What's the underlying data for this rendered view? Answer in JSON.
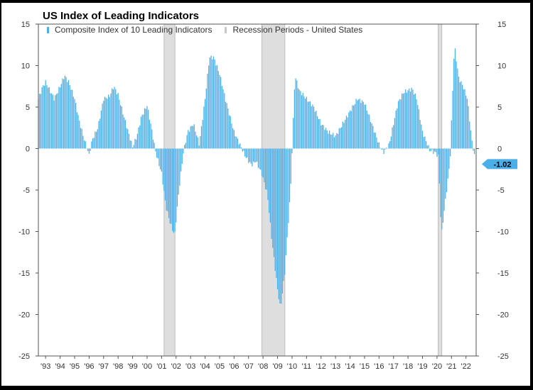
{
  "chart_data": {
    "type": "bar",
    "title": "US Index of Leading Indicators",
    "legend": [
      {
        "name": "Composite Index of 10 Leading Indicators",
        "color": "#4aaee8"
      },
      {
        "name": "Recession Periods - United States",
        "color": "#c8c8c8"
      }
    ],
    "legend_position": "top-left",
    "ylim": [
      -25,
      15
    ],
    "yticks": [
      15,
      10,
      5,
      0,
      -5,
      -10,
      -15,
      -20,
      -25
    ],
    "ytick_labels": [
      "15",
      "10",
      "5",
      "0",
      "-5",
      "-10",
      "-15",
      "-20",
      "-25"
    ],
    "xlim": [
      1992.5,
      2022.7
    ],
    "xtick_labels": [
      "'93",
      "'94",
      "'95",
      "'96",
      "'97",
      "'98",
      "'99",
      "'00",
      "'01",
      "'02",
      "'03",
      "'04",
      "'05",
      "'06",
      "'07",
      "'08",
      "'09",
      "'10",
      "'11",
      "'12",
      "'13",
      "'14",
      "'15",
      "'16",
      "'17",
      "'18",
      "'19",
      "'20",
      "'21",
      "'22"
    ],
    "recessions": [
      [
        2001.17,
        2001.92
      ],
      [
        2007.92,
        2009.5
      ],
      [
        2020.08,
        2020.33
      ]
    ],
    "last_value": -1.02,
    "last_value_label": "-1.02",
    "grid": false,
    "bar_color": "#4aaee8",
    "series_keypoints": {
      "x": [
        1992.5,
        1992.8,
        1993.0,
        1993.3,
        1993.6,
        1994.0,
        1994.3,
        1994.6,
        1995.0,
        1995.3,
        1995.6,
        1996.0,
        1996.2,
        1996.6,
        1997.0,
        1997.4,
        1997.7,
        1998.0,
        1998.3,
        1998.7,
        1999.0,
        1999.3,
        1999.6,
        2000.0,
        2000.3,
        2000.6,
        2001.0,
        2001.3,
        2001.6,
        2001.9,
        2002.2,
        2002.5,
        2002.8,
        2003.2,
        2003.6,
        2004.0,
        2004.3,
        2004.6,
        2005.0,
        2005.4,
        2005.7,
        2006.0,
        2006.4,
        2006.8,
        2007.2,
        2007.5,
        2007.9,
        2008.3,
        2008.6,
        2009.0,
        2009.2,
        2009.5,
        2009.9,
        2010.2,
        2010.5,
        2011.0,
        2011.5,
        2012.0,
        2012.5,
        2013.0,
        2013.5,
        2014.0,
        2014.5,
        2015.0,
        2015.3,
        2015.7,
        2016.0,
        2016.3,
        2016.7,
        2017.0,
        2017.3,
        2017.7,
        2018.0,
        2018.3,
        2018.6,
        2019.0,
        2019.5,
        2019.9,
        2020.1,
        2020.3,
        2020.6,
        2020.9,
        2021.2,
        2021.5,
        2021.8,
        2022.1,
        2022.4,
        2022.6
      ],
      "y": [
        6,
        7.5,
        8,
        7,
        6,
        7.5,
        8.8,
        8,
        6,
        3.5,
        1.5,
        -0.8,
        1,
        2.5,
        6,
        6.3,
        7.5,
        6.5,
        4.5,
        2,
        0.2,
        1.5,
        3.8,
        5.2,
        2.5,
        -0.5,
        -3,
        -7,
        -9,
        -10.5,
        -5,
        -0.5,
        2,
        3,
        0.5,
        6,
        11,
        11,
        9,
        6,
        4,
        2,
        0.5,
        -1,
        -2,
        -1.5,
        -3,
        -5.5,
        -11,
        -17,
        -19.3,
        -15,
        -5,
        8.8,
        7,
        6,
        5,
        3,
        2,
        1.5,
        3,
        4.5,
        6,
        5.5,
        4,
        2,
        0.5,
        -0.5,
        0.5,
        3,
        5.5,
        6.8,
        7,
        7.2,
        6,
        2,
        -0.2,
        -0.5,
        -1,
        -10.5,
        -6,
        -1.5,
        12.5,
        8.5,
        7.5,
        6,
        1,
        -1.02
      ]
    }
  }
}
